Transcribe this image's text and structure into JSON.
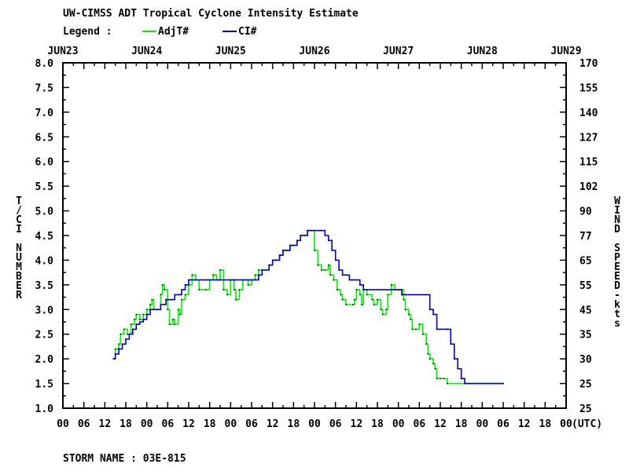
{
  "chart_data": {
    "type": "line",
    "title": "UW-CIMSS ADT Tropical Cyclone Intensity Estimate",
    "legend_label": "Legend :",
    "legend_placement": "top-left",
    "y_left_label": "T/CI NUMBER",
    "y_right_label": "WIND SPEED-kts",
    "x_unit_label": "(UTC)",
    "footer": "STORM NAME : 03E-815",
    "date_labels": [
      "JUN23",
      "JUN24",
      "JUN25",
      "JUN26",
      "JUN27",
      "JUN28",
      "JUN29"
    ],
    "hour_labels": [
      "00",
      "06",
      "12",
      "18",
      "00",
      "06",
      "12",
      "18",
      "00",
      "06",
      "12",
      "18",
      "00",
      "06",
      "12",
      "18",
      "00",
      "06",
      "12",
      "18",
      "00",
      "06",
      "12",
      "18",
      "00"
    ],
    "x_range_hours": [
      0,
      144
    ],
    "ylim": [
      1.0,
      8.0
    ],
    "y_ticks": [
      "1.0",
      "1.5",
      "2.0",
      "2.5",
      "3.0",
      "3.5",
      "4.0",
      "4.5",
      "5.0",
      "5.5",
      "6.0",
      "6.5",
      "7.0",
      "7.5",
      "8.0"
    ],
    "y_right_ticks": [
      "25",
      "25",
      "30",
      "35",
      "45",
      "55",
      "65",
      "77",
      "90",
      "102",
      "115",
      "127",
      "140",
      "155",
      "170"
    ],
    "grid": false,
    "series": [
      {
        "name": "AdjT#",
        "color": "#00ee00",
        "points": [
          [
            14.5,
            2.0
          ],
          [
            15,
            2.2
          ],
          [
            16,
            2.3
          ],
          [
            16.5,
            2.5
          ],
          [
            17.5,
            2.6
          ],
          [
            18.5,
            2.5
          ],
          [
            19.5,
            2.7
          ],
          [
            20.5,
            2.8
          ],
          [
            21,
            2.9
          ],
          [
            22,
            2.8
          ],
          [
            23,
            2.9
          ],
          [
            24,
            3.0
          ],
          [
            25,
            3.1
          ],
          [
            25.5,
            3.2
          ],
          [
            26,
            3.0
          ],
          [
            27,
            3.0
          ],
          [
            28,
            3.3
          ],
          [
            28.5,
            3.5
          ],
          [
            29,
            3.4
          ],
          [
            30,
            3.0
          ],
          [
            30.5,
            2.7
          ],
          [
            31.5,
            2.8
          ],
          [
            32,
            2.7
          ],
          [
            33,
            3.0
          ],
          [
            33.5,
            2.9
          ],
          [
            34,
            3.2
          ],
          [
            35,
            3.3
          ],
          [
            36,
            3.5
          ],
          [
            37,
            3.7
          ],
          [
            38,
            3.6
          ],
          [
            39,
            3.4
          ],
          [
            41,
            3.4
          ],
          [
            42,
            3.6
          ],
          [
            43,
            3.7
          ],
          [
            44,
            3.6
          ],
          [
            45,
            3.8
          ],
          [
            46,
            3.4
          ],
          [
            47,
            3.3
          ],
          [
            48,
            3.6
          ],
          [
            49,
            3.4
          ],
          [
            49.5,
            3.2
          ],
          [
            50.5,
            3.4
          ],
          [
            51.5,
            3.6
          ],
          [
            52,
            3.6
          ],
          [
            53,
            3.5
          ],
          [
            54,
            3.6
          ],
          [
            55,
            3.7
          ],
          [
            56,
            3.8
          ],
          [
            57,
            3.8
          ],
          [
            59,
            3.9
          ],
          [
            60,
            4.0
          ],
          [
            61,
            4.0
          ],
          [
            62,
            4.1
          ],
          [
            63,
            4.2
          ],
          [
            64,
            4.2
          ],
          [
            65,
            4.3
          ],
          [
            66,
            4.3
          ],
          [
            67,
            4.4
          ],
          [
            68,
            4.5
          ],
          [
            69,
            4.5
          ],
          [
            70,
            4.6
          ],
          [
            71,
            4.6
          ],
          [
            72,
            4.2
          ],
          [
            73,
            3.9
          ],
          [
            74,
            3.8
          ],
          [
            75,
            3.8
          ],
          [
            76,
            3.9
          ],
          [
            76.5,
            3.7
          ],
          [
            77.5,
            3.6
          ],
          [
            78.5,
            3.4
          ],
          [
            79.5,
            3.3
          ],
          [
            80,
            3.2
          ],
          [
            81,
            3.1
          ],
          [
            83,
            3.1
          ],
          [
            83.5,
            3.2
          ],
          [
            84,
            3.4
          ],
          [
            85,
            3.3
          ],
          [
            85.5,
            3.1
          ],
          [
            86,
            3.4
          ],
          [
            87,
            3.3
          ],
          [
            88.5,
            3.2
          ],
          [
            89,
            3.1
          ],
          [
            90,
            3.2
          ],
          [
            91,
            3.0
          ],
          [
            91.5,
            2.9
          ],
          [
            92.5,
            3.0
          ],
          [
            93,
            3.3
          ],
          [
            94,
            3.5
          ],
          [
            95,
            3.4
          ],
          [
            96,
            3.4
          ],
          [
            97,
            3.4
          ],
          [
            97.5,
            3.2
          ],
          [
            98,
            3.0
          ],
          [
            99,
            2.9
          ],
          [
            99.5,
            2.8
          ],
          [
            100,
            2.6
          ],
          [
            101,
            2.6
          ],
          [
            102,
            2.7
          ],
          [
            103,
            2.5
          ],
          [
            104,
            2.3
          ],
          [
            104.5,
            2.1
          ],
          [
            105,
            2.0
          ],
          [
            106,
            1.9
          ],
          [
            106.5,
            1.8
          ],
          [
            107,
            1.6
          ],
          [
            108,
            1.6
          ],
          [
            109,
            1.6
          ],
          [
            110,
            1.5
          ],
          [
            115,
            1.5
          ],
          [
            126,
            1.5
          ]
        ]
      },
      {
        "name": "CI#",
        "color": "#0000bb",
        "points": [
          [
            14.5,
            2.0
          ],
          [
            15,
            2.1
          ],
          [
            16,
            2.2
          ],
          [
            17,
            2.3
          ],
          [
            18,
            2.4
          ],
          [
            19,
            2.5
          ],
          [
            20,
            2.6
          ],
          [
            21,
            2.7
          ],
          [
            22,
            2.75
          ],
          [
            23,
            2.8
          ],
          [
            24,
            2.9
          ],
          [
            25,
            3.0
          ],
          [
            26,
            3.0
          ],
          [
            27,
            3.0
          ],
          [
            28,
            3.1
          ],
          [
            29,
            3.1
          ],
          [
            29.5,
            3.2
          ],
          [
            30,
            3.2
          ],
          [
            31,
            3.2
          ],
          [
            32,
            3.3
          ],
          [
            33,
            3.3
          ],
          [
            34,
            3.4
          ],
          [
            35,
            3.5
          ],
          [
            36,
            3.6
          ],
          [
            41,
            3.6
          ],
          [
            55,
            3.6
          ],
          [
            56,
            3.7
          ],
          [
            57,
            3.8
          ],
          [
            59,
            3.9
          ],
          [
            60,
            4.0
          ],
          [
            61,
            4.0
          ],
          [
            62,
            4.1
          ],
          [
            63,
            4.2
          ],
          [
            64,
            4.2
          ],
          [
            65,
            4.3
          ],
          [
            66,
            4.3
          ],
          [
            67,
            4.4
          ],
          [
            68,
            4.5
          ],
          [
            69,
            4.5
          ],
          [
            70,
            4.6
          ],
          [
            71,
            4.6
          ],
          [
            72,
            4.6
          ],
          [
            74,
            4.6
          ],
          [
            75,
            4.5
          ],
          [
            76,
            4.4
          ],
          [
            77,
            4.2
          ],
          [
            78,
            4.0
          ],
          [
            79,
            3.8
          ],
          [
            80,
            3.7
          ],
          [
            81,
            3.7
          ],
          [
            82,
            3.6
          ],
          [
            83,
            3.6
          ],
          [
            84,
            3.6
          ],
          [
            85,
            3.5
          ],
          [
            86,
            3.4
          ],
          [
            96,
            3.4
          ],
          [
            97,
            3.3
          ],
          [
            98,
            3.3
          ],
          [
            104,
            3.3
          ],
          [
            105,
            3.0
          ],
          [
            106,
            2.9
          ],
          [
            107,
            2.6
          ],
          [
            110,
            2.6
          ],
          [
            111,
            2.3
          ],
          [
            112,
            2.0
          ],
          [
            113,
            1.8
          ],
          [
            114,
            1.6
          ],
          [
            115,
            1.5
          ],
          [
            126,
            1.5
          ]
        ]
      }
    ]
  }
}
